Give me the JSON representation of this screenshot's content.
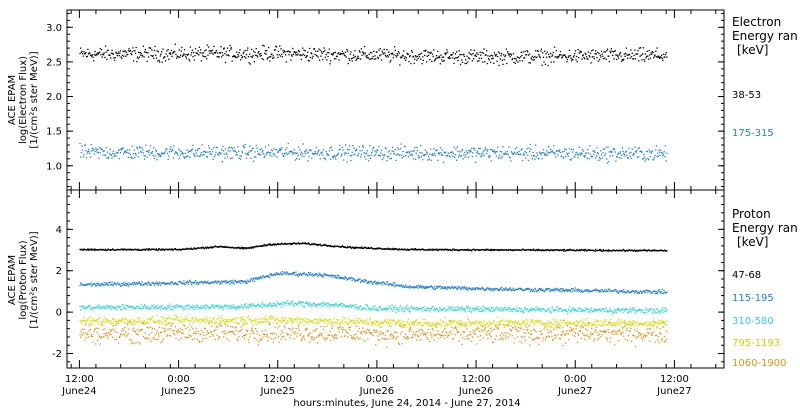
{
  "chart_data": {
    "type": "scatter",
    "xlabel": "hours:minutes, June 24, 2014 - June 27, 2014",
    "x_ticks": [
      {
        "t": 0,
        "time": "12:00",
        "date": "June24"
      },
      {
        "t": 12,
        "time": "0:00",
        "date": "June25"
      },
      {
        "t": 24,
        "time": "12:00",
        "date": "June25"
      },
      {
        "t": 36,
        "time": "0:00",
        "date": "June26"
      },
      {
        "t": 48,
        "time": "12:00",
        "date": "June26"
      },
      {
        "t": 60,
        "time": "0:00",
        "date": "June27"
      },
      {
        "t": 72,
        "time": "12:00",
        "date": "June27"
      }
    ],
    "xlim": [
      -1.5,
      78
    ],
    "data_end": 71,
    "panels": [
      {
        "id": "electron",
        "ylabel_lines": [
          "ACE EPAM",
          "log(Electron Flux)",
          "[1/(cm²s ster MeV)]"
        ],
        "ylim": [
          0.65,
          3.25
        ],
        "yticks": [
          1.0,
          1.5,
          2.0,
          2.5,
          3.0
        ],
        "ytick_labels": [
          "1.0",
          "1.5",
          "2.0",
          "2.5",
          "3.0"
        ],
        "legend": {
          "line1": "Electron",
          "line2": "Energy ran",
          "unit": "[keV]",
          "entries": [
            {
              "label": "38-53",
              "color": "#000000"
            },
            {
              "label": "175-315",
              "color": "#1f7fd8"
            }
          ]
        },
        "series": [
          {
            "label": "38-53",
            "color": "#000000",
            "profile": [
              [
                0,
                2.62
              ],
              [
                24,
                2.63
              ],
              [
                48,
                2.58
              ],
              [
                71,
                2.6
              ]
            ],
            "spread": 0.08
          },
          {
            "label": "175-315",
            "color": "#1f7fd8",
            "profile": [
              [
                0,
                1.2
              ],
              [
                24,
                1.2
              ],
              [
                48,
                1.19
              ],
              [
                71,
                1.18
              ]
            ],
            "spread": 0.08
          }
        ]
      },
      {
        "id": "proton",
        "ylabel_lines": [
          "ACE EPAM",
          "log(Proton Flux)",
          "[1/(cm²s ster MeV)]"
        ],
        "ylim": [
          -2.7,
          5.9
        ],
        "yticks": [
          -2,
          0,
          2,
          4
        ],
        "ytick_labels": [
          "-2",
          "0",
          "2",
          "4"
        ],
        "legend": {
          "line1": "Proton",
          "line2": "Energy ran",
          "unit": "[keV]",
          "entries": [
            {
              "label": "47-68",
              "color": "#000000"
            },
            {
              "label": "115-195",
              "color": "#1f7fd8"
            },
            {
              "label": "310-580",
              "color": "#2fd8d8"
            },
            {
              "label": "795-1193",
              "color": "#d4e000"
            },
            {
              "label": "1060-1900",
              "color": "#f08c10"
            }
          ]
        },
        "series": [
          {
            "label": "47-68",
            "color": "#000000",
            "profile": [
              [
                0,
                3.05
              ],
              [
                12,
                3.05
              ],
              [
                17,
                3.2
              ],
              [
                20,
                3.1
              ],
              [
                23,
                3.3
              ],
              [
                27,
                3.35
              ],
              [
                33,
                3.15
              ],
              [
                40,
                3.05
              ],
              [
                71,
                3.0
              ]
            ],
            "spread": 0.03
          },
          {
            "label": "115-195",
            "color": "#1f7fd8",
            "profile": [
              [
                0,
                1.35
              ],
              [
                13,
                1.45
              ],
              [
                20,
                1.5
              ],
              [
                24,
                1.9
              ],
              [
                29,
                1.85
              ],
              [
                34,
                1.55
              ],
              [
                40,
                1.25
              ],
              [
                50,
                1.15
              ],
              [
                71,
                1.0
              ]
            ],
            "spread": 0.07
          },
          {
            "label": "310-580",
            "color": "#2fd8d8",
            "profile": [
              [
                0,
                0.25
              ],
              [
                20,
                0.3
              ],
              [
                25,
                0.45
              ],
              [
                30,
                0.4
              ],
              [
                36,
                0.2
              ],
              [
                71,
                0.1
              ]
            ],
            "spread": 0.1
          },
          {
            "label": "795-1193",
            "color": "#d4e000",
            "profile": [
              [
                0,
                -0.4
              ],
              [
                25,
                -0.35
              ],
              [
                40,
                -0.5
              ],
              [
                71,
                -0.5
              ]
            ],
            "spread": 0.15
          },
          {
            "label": "1060-1900",
            "color": "#f08c10",
            "profile": [
              [
                0,
                -1.0
              ],
              [
                25,
                -0.95
              ],
              [
                40,
                -1.05
              ],
              [
                71,
                -1.0
              ]
            ],
            "spread": 0.35
          }
        ]
      }
    ]
  }
}
